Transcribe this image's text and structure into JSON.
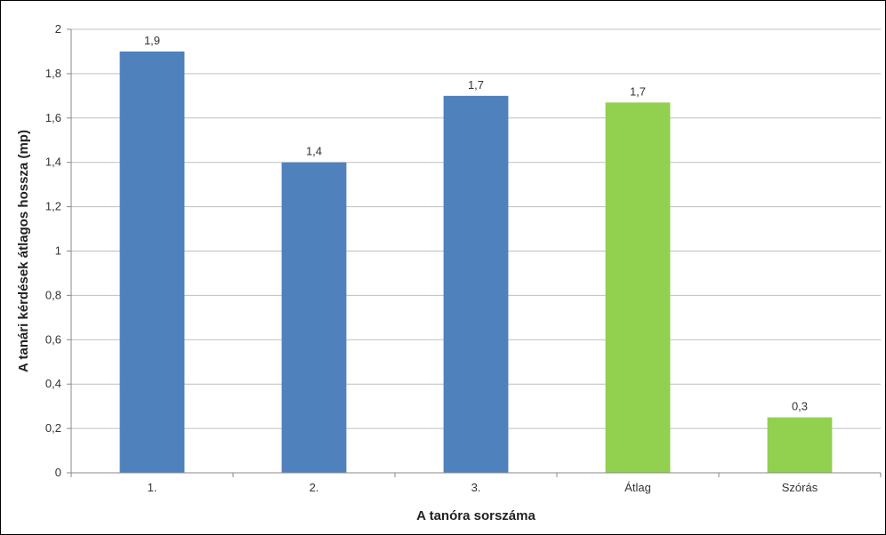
{
  "chart_data": {
    "type": "bar",
    "title": "",
    "xlabel": "A tanóra sorszáma",
    "ylabel": "A tanári kérdések átlagos hossza (mp)",
    "categories": [
      "1.",
      "2.",
      "3.",
      "Átlag",
      "Szórás"
    ],
    "values": [
      1.9,
      1.4,
      1.7,
      1.67,
      0.25
    ],
    "data_labels": [
      "1,9",
      "1,4",
      "1,7",
      "1,7",
      "0,3"
    ],
    "bar_colors": [
      "#4f81bd",
      "#4f81bd",
      "#4f81bd",
      "#92d050",
      "#92d050"
    ],
    "ylim": [
      0,
      2
    ],
    "yticks": [
      0,
      0.2,
      0.4,
      0.6,
      0.8,
      1,
      1.2,
      1.4,
      1.6,
      1.8,
      2
    ],
    "ytick_labels": [
      "0",
      "0,2",
      "0,4",
      "0,6",
      "0,8",
      "1",
      "1,2",
      "1,4",
      "1,6",
      "1,8",
      "2"
    ],
    "grid": true,
    "legend": "none"
  }
}
